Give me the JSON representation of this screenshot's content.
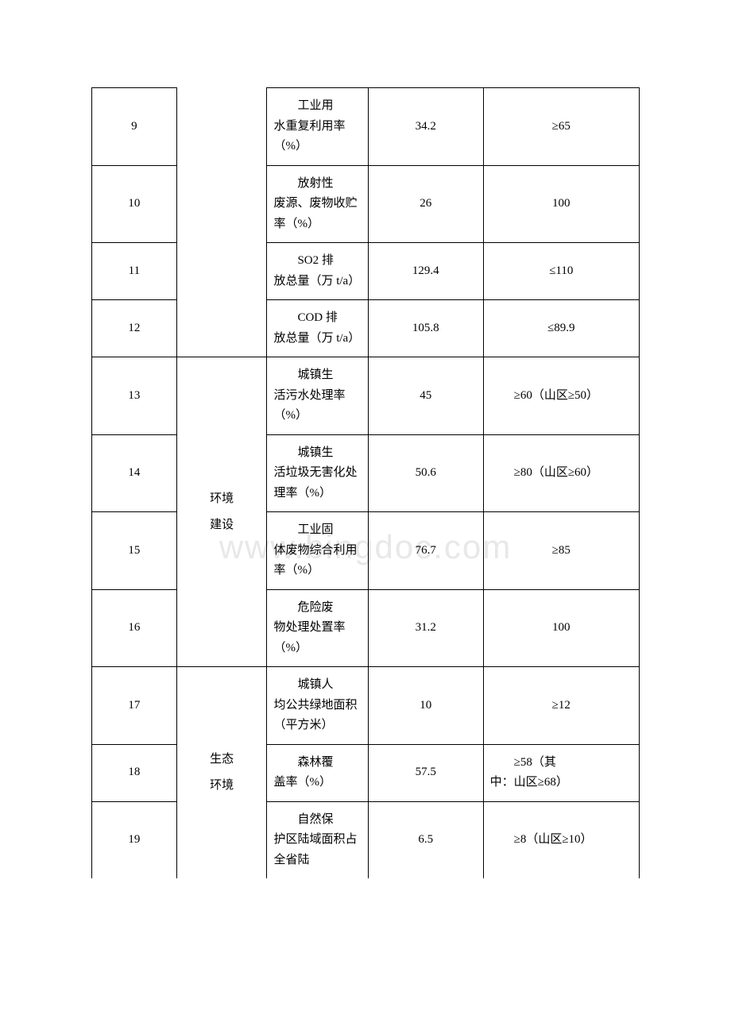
{
  "watermark": "www.bingdoc.com",
  "categories": {
    "env_construction": "环境\n建设",
    "eco_environment": "生态\n环境"
  },
  "rows": [
    {
      "idx": "9",
      "indicator": "工业用水重复利用率（%）",
      "indicator_first": "工业用",
      "indicator_rest": "水重复利用率（%）",
      "current": "34.2",
      "target": "≥65",
      "target_indent": false
    },
    {
      "idx": "10",
      "indicator_first": "放射性",
      "indicator_rest": "废源、废物收贮率（%）",
      "current": "26",
      "target": "100",
      "target_indent": false
    },
    {
      "idx": "11",
      "indicator_first": "SO2 排",
      "indicator_rest": "放总量（万 t/a）",
      "current": "129.4",
      "target": "≤110",
      "target_indent": false
    },
    {
      "idx": "12",
      "indicator_first": "COD 排",
      "indicator_rest": "放总量（万 t/a）",
      "current": "105.8",
      "target": "≤89.9",
      "target_indent": false
    },
    {
      "idx": "13",
      "indicator_first": "城镇生",
      "indicator_rest": "活污水处理率（%）",
      "current": "45",
      "target_first": "≥60（山",
      "target_rest": "区≥50）",
      "target_indent": true
    },
    {
      "idx": "14",
      "indicator_first": "城镇生",
      "indicator_rest": "活垃圾无害化处理率（%）",
      "current": "50.6",
      "target_first": "≥80（山",
      "target_rest": "区≥60）",
      "target_indent": true
    },
    {
      "idx": "15",
      "indicator_first": "工业固",
      "indicator_rest": "体废物综合利用率（%）",
      "current": "76.7",
      "target": "≥85",
      "target_indent": false
    },
    {
      "idx": "16",
      "indicator_first": "危险废",
      "indicator_rest": "物处理处置率（%）",
      "current": "31.2",
      "target": "100",
      "target_indent": false
    },
    {
      "idx": "17",
      "indicator_first": "城镇人",
      "indicator_rest": "均公共绿地面积（平方米）",
      "current": "10",
      "target": "≥12",
      "target_indent": false
    },
    {
      "idx": "18",
      "indicator_first": "森林覆",
      "indicator_rest": "盖率（%）",
      "current": "57.5",
      "target_first": "≥58（其",
      "target_rest": "中：山区≥68）",
      "target_indent": true
    },
    {
      "idx": "19",
      "indicator_first": "自然保",
      "indicator_rest": "护区陆域面积占全省陆",
      "current": "6.5",
      "target_first": "≥8（山",
      "target_rest": "区≥10）",
      "target_indent": true
    }
  ]
}
